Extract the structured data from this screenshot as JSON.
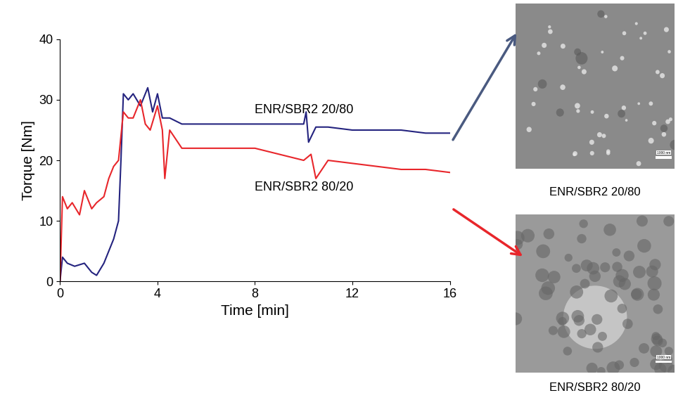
{
  "chart_data": {
    "type": "line",
    "x_label": "Time [min]",
    "y_label": "Torque [Nm]",
    "xlim": [
      0,
      16
    ],
    "xticks": [
      0,
      4,
      8,
      12,
      16
    ],
    "ylim": [
      0,
      40
    ],
    "yticks": [
      0,
      10,
      20,
      30,
      40
    ],
    "grid": false,
    "annotations": [
      "ENR/SBR2 20/80",
      "ENR/SBR2 80/20"
    ],
    "series": [
      {
        "name": "ENR/SBR2 20/80",
        "color": "#24237f",
        "x": [
          0,
          0.1,
          0.3,
          0.6,
          1.0,
          1.3,
          1.5,
          1.8,
          2.0,
          2.2,
          2.4,
          2.5,
          2.6,
          2.8,
          3.0,
          3.3,
          3.6,
          3.8,
          4.0,
          4.2,
          4.5,
          5.0,
          6.0,
          7.0,
          8.0,
          9.0,
          10.0,
          10.1,
          10.2,
          10.5,
          11.0,
          12.0,
          13.0,
          14.0,
          15.0,
          16.0
        ],
        "values": [
          0,
          4,
          3,
          2.5,
          3,
          1.5,
          1,
          3,
          5,
          7,
          10,
          20,
          31,
          30,
          31,
          29,
          32,
          28,
          31,
          27,
          27,
          26,
          26,
          26,
          26,
          26,
          26,
          28,
          23,
          25.5,
          25.5,
          25,
          25,
          25,
          24.5,
          24.5
        ]
      },
      {
        "name": "ENR/SBR2 80/20",
        "color": "#e8262b",
        "x": [
          0,
          0.1,
          0.3,
          0.5,
          0.8,
          1.0,
          1.3,
          1.5,
          1.8,
          2.0,
          2.2,
          2.4,
          2.5,
          2.6,
          2.8,
          3.0,
          3.3,
          3.5,
          3.7,
          4.0,
          4.2,
          4.3,
          4.5,
          5.0,
          6.0,
          7.0,
          8.0,
          9.0,
          10.0,
          10.3,
          10.5,
          11.0,
          12.0,
          13.0,
          14.0,
          15.0,
          16.0
        ],
        "values": [
          0,
          14,
          12,
          13,
          11,
          15,
          12,
          13,
          14,
          17,
          19,
          20,
          24,
          28,
          27,
          27,
          30,
          26,
          25,
          29,
          25,
          17,
          25,
          22,
          22,
          22,
          22,
          21,
          20,
          21,
          17,
          20,
          19.5,
          19,
          18.5,
          18.5,
          18
        ]
      }
    ]
  },
  "panels": [
    {
      "label": "ENR/SBR2 20/80",
      "scale_bar": "1000 nm"
    },
    {
      "label": "ENR/SBR2 80/20",
      "scale_bar": "1000 nm"
    }
  ]
}
